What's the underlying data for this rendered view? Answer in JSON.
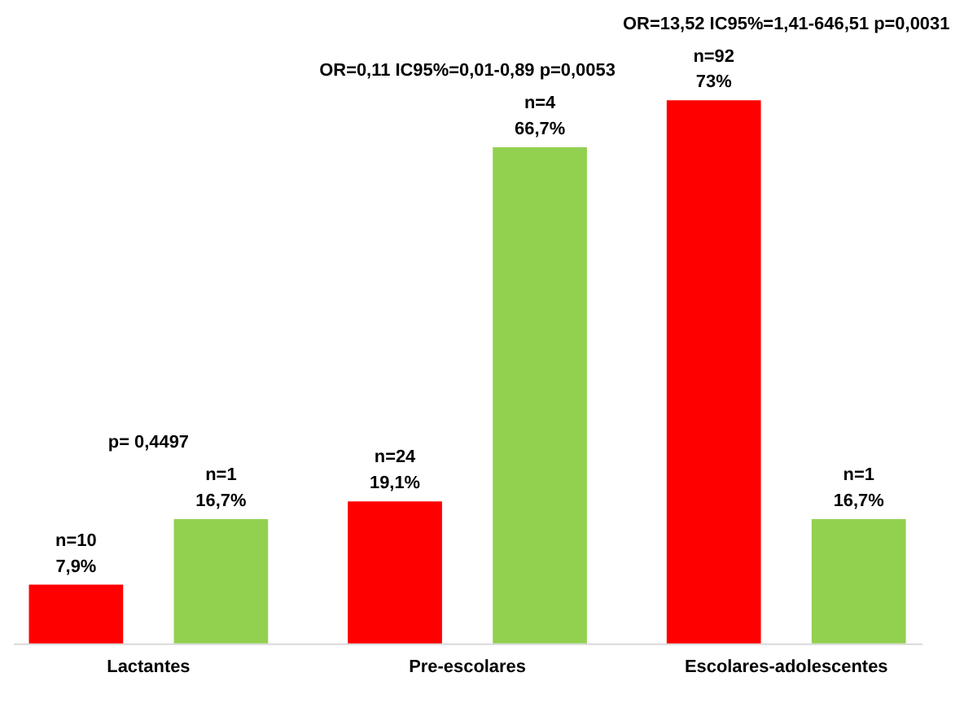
{
  "chart_data": {
    "type": "bar",
    "categories": [
      "Lactantes",
      "Pre-escolares",
      "Escolares-adolescentes"
    ],
    "series": [
      {
        "color": "#ff0000",
        "values": [
          7.9,
          19.1,
          73
        ],
        "value_labels": [
          "n=10\n7,9%",
          "n=24\n19,1%",
          "n=92\n73%"
        ]
      },
      {
        "color": "#92d050",
        "values": [
          16.7,
          66.7,
          16.7
        ],
        "value_labels": [
          "n=1\n16,7%",
          "n=4\n66,7%",
          "n=1\n16,7%"
        ]
      }
    ],
    "annotations": [
      "p= 0,4497",
      "OR=0,11 IC95%=0,01-0,89 p=0,0053",
      "OR=13,52 IC95%=1,41-646,51 p=0,0031"
    ],
    "grid": false,
    "legend": false
  }
}
